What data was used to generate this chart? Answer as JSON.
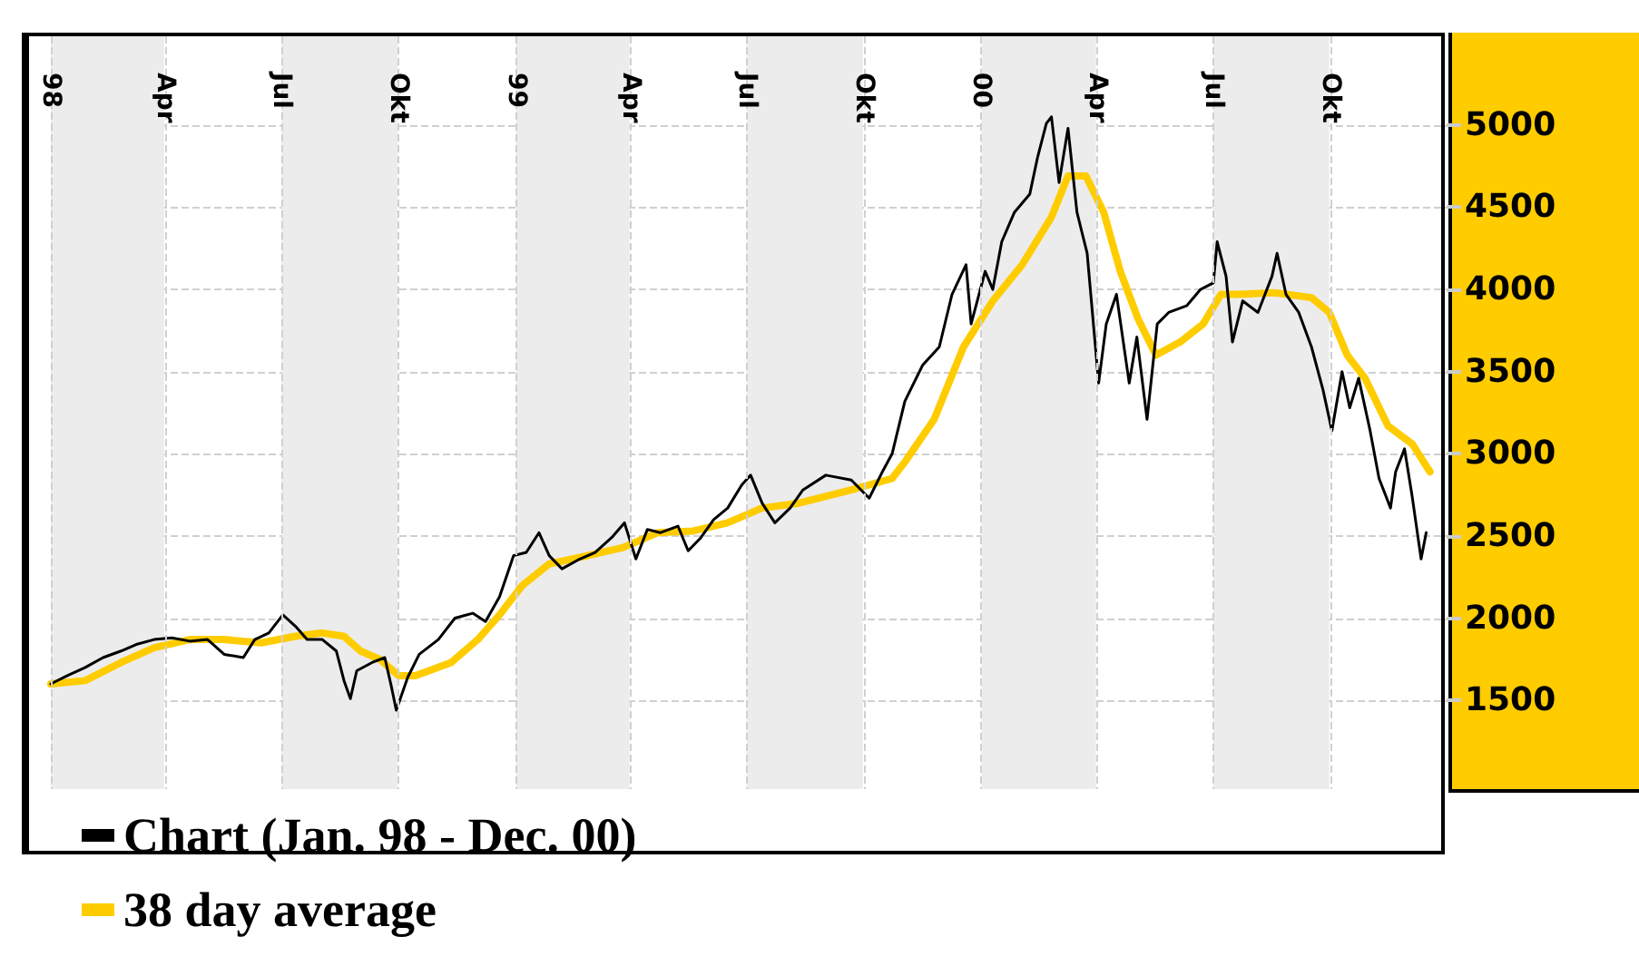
{
  "chart_data": {
    "type": "line",
    "xlim": [
      "1998-01-01",
      "2000-12-31"
    ],
    "xticks": [
      {
        "value": "1998-01-01",
        "label": "98"
      },
      {
        "value": "1998-04-01",
        "label": "Apr"
      },
      {
        "value": "1998-07-01",
        "label": "Jul"
      },
      {
        "value": "1998-10-01",
        "label": "Okt"
      },
      {
        "value": "1999-01-01",
        "label": "99"
      },
      {
        "value": "1999-04-01",
        "label": "Apr"
      },
      {
        "value": "1999-07-01",
        "label": "Jul"
      },
      {
        "value": "1999-10-01",
        "label": "Okt"
      },
      {
        "value": "2000-01-01",
        "label": "00"
      },
      {
        "value": "2000-04-01",
        "label": "Apr"
      },
      {
        "value": "2000-07-01",
        "label": "Jul"
      },
      {
        "value": "2000-10-01",
        "label": "Okt"
      }
    ],
    "ylim": [
      960,
      5540
    ],
    "yticks": [
      1500,
      2000,
      2500,
      3000,
      3500,
      4000,
      4500,
      5000
    ],
    "grid": true,
    "legend": "bottom left",
    "marker": "none",
    "line_style": "solid",
    "bands": [
      {
        "axis": "x",
        "from": "1998-01-01",
        "to": "1998-03-31",
        "color": "#ececec"
      },
      {
        "axis": "x",
        "from": "1998-07-01",
        "to": "1998-09-30",
        "color": "#ececec"
      },
      {
        "axis": "x",
        "from": "1999-01-01",
        "to": "1999-03-31",
        "color": "#ececec"
      },
      {
        "axis": "x",
        "from": "1999-07-01",
        "to": "1999-09-30",
        "color": "#ececec"
      },
      {
        "axis": "x",
        "from": "2000-01-01",
        "to": "2000-03-31",
        "color": "#ececec"
      },
      {
        "axis": "x",
        "from": "2000-07-01",
        "to": "2000-09-30",
        "color": "#ececec"
      }
    ],
    "series": [
      {
        "name": "Chart (Jan. 98 - Dec. 00)",
        "color": "#000000",
        "x": [
          "1998-01-01",
          "1998-01-14",
          "1998-01-28",
          "1998-02-11",
          "1998-02-25",
          "1998-03-09",
          "1998-03-23",
          "1998-04-06",
          "1998-04-20",
          "1998-05-04",
          "1998-05-17",
          "1998-06-01",
          "1998-06-10",
          "1998-06-21",
          "1998-07-02",
          "1998-07-12",
          "1998-07-21",
          "1998-08-02",
          "1998-08-13",
          "1998-08-19",
          "1998-08-24",
          "1998-08-29",
          "1998-09-10",
          "1998-09-20",
          "1998-09-25",
          "1998-09-29",
          "1998-10-08",
          "1998-10-17",
          "1998-11-01",
          "1998-11-14",
          "1998-11-28",
          "1998-12-08",
          "1998-12-19",
          "1998-12-30",
          "1999-01-09",
          "1999-01-19",
          "1999-01-27",
          "1999-02-06",
          "1999-02-20",
          "1999-03-04",
          "1999-03-17",
          "1999-03-27",
          "1999-04-05",
          "1999-04-14",
          "1999-04-24",
          "1999-05-08",
          "1999-05-16",
          "1999-05-26",
          "1999-06-05",
          "1999-06-16",
          "1999-06-27",
          "1999-07-04",
          "1999-07-13",
          "1999-07-23",
          "1999-08-04",
          "1999-08-14",
          "1999-09-01",
          "1999-09-21",
          "1999-10-05",
          "1999-10-16",
          "1999-10-23",
          "1999-11-02",
          "1999-11-16",
          "1999-11-29",
          "1999-12-09",
          "1999-12-20",
          "1999-12-24",
          "2000-01-04",
          "2000-01-10",
          "2000-01-17",
          "2000-01-27",
          "2000-02-08",
          "2000-02-14",
          "2000-02-21",
          "2000-02-25",
          "2000-03-02",
          "2000-03-09",
          "2000-03-16",
          "2000-03-24",
          "2000-04-02",
          "2000-04-08",
          "2000-04-16",
          "2000-04-26",
          "2000-05-02",
          "2000-05-10",
          "2000-05-18",
          "2000-05-27",
          "2000-06-10",
          "2000-06-21",
          "2000-07-01",
          "2000-07-04",
          "2000-07-11",
          "2000-07-16",
          "2000-07-24",
          "2000-08-05",
          "2000-08-16",
          "2000-08-20",
          "2000-08-27",
          "2000-09-06",
          "2000-09-16",
          "2000-09-25",
          "2000-10-02",
          "2000-10-10",
          "2000-10-16",
          "2000-10-23",
          "2000-11-01",
          "2000-11-08",
          "2000-11-17",
          "2000-11-21",
          "2000-11-28",
          "2000-12-04",
          "2000-12-11",
          "2000-12-15"
        ],
        "values": [
          1600,
          1650,
          1700,
          1760,
          1800,
          1840,
          1870,
          1880,
          1860,
          1870,
          1780,
          1760,
          1870,
          1910,
          2020,
          1950,
          1870,
          1870,
          1800,
          1620,
          1510,
          1680,
          1730,
          1760,
          1590,
          1440,
          1640,
          1780,
          1870,
          2000,
          2030,
          1980,
          2130,
          2380,
          2400,
          2520,
          2380,
          2300,
          2360,
          2400,
          2490,
          2580,
          2360,
          2540,
          2520,
          2560,
          2410,
          2490,
          2600,
          2670,
          2810,
          2870,
          2700,
          2580,
          2670,
          2780,
          2870,
          2840,
          2730,
          2900,
          3000,
          3320,
          3540,
          3650,
          3970,
          4150,
          3790,
          4110,
          4000,
          4290,
          4470,
          4580,
          4800,
          5010,
          5050,
          4650,
          4980,
          4470,
          4220,
          3430,
          3790,
          3970,
          3430,
          3710,
          3210,
          3790,
          3860,
          3900,
          4000,
          4040,
          4290,
          4080,
          3680,
          3930,
          3860,
          4080,
          4220,
          3970,
          3860,
          3650,
          3390,
          3140,
          3500,
          3280,
          3460,
          3140,
          2850,
          2670,
          2890,
          3030,
          2740,
          2360,
          2520
        ]
      },
      {
        "name": "38 day average",
        "color": "#ffcc00",
        "x": [
          "1998-01-01",
          "1998-01-28",
          "1998-02-25",
          "1998-03-23",
          "1998-04-20",
          "1998-05-17",
          "1998-06-15",
          "1998-07-12",
          "1998-08-02",
          "1998-08-19",
          "1998-09-01",
          "1998-09-16",
          "1998-10-01",
          "1998-10-14",
          "1998-11-11",
          "1998-12-02",
          "1998-12-19",
          "1999-01-06",
          "1999-01-27",
          "1999-02-26",
          "1999-03-26",
          "1999-04-22",
          "1999-05-20",
          "1999-06-16",
          "1999-07-13",
          "1999-08-11",
          "1999-09-21",
          "1999-10-23",
          "1999-11-02",
          "1999-11-25",
          "1999-12-18",
          "2000-01-10",
          "2000-02-02",
          "2000-02-25",
          "2000-03-09",
          "2000-03-23",
          "2000-04-06",
          "2000-04-19",
          "2000-05-03",
          "2000-05-17",
          "2000-06-05",
          "2000-06-23",
          "2000-07-07",
          "2000-07-21",
          "2000-08-18",
          "2000-09-16",
          "2000-09-30",
          "2000-10-14",
          "2000-10-28",
          "2000-11-15",
          "2000-12-04",
          "2000-12-18"
        ],
        "values": [
          1600,
          1620,
          1730,
          1820,
          1870,
          1870,
          1850,
          1890,
          1910,
          1890,
          1800,
          1750,
          1650,
          1650,
          1730,
          1870,
          2020,
          2200,
          2330,
          2380,
          2430,
          2520,
          2530,
          2580,
          2670,
          2700,
          2780,
          2850,
          2950,
          3210,
          3650,
          3930,
          4150,
          4440,
          4690,
          4690,
          4470,
          4110,
          3820,
          3600,
          3680,
          3790,
          3970,
          3970,
          3980,
          3950,
          3860,
          3600,
          3460,
          3170,
          3060,
          2890
        ]
      }
    ]
  }
}
